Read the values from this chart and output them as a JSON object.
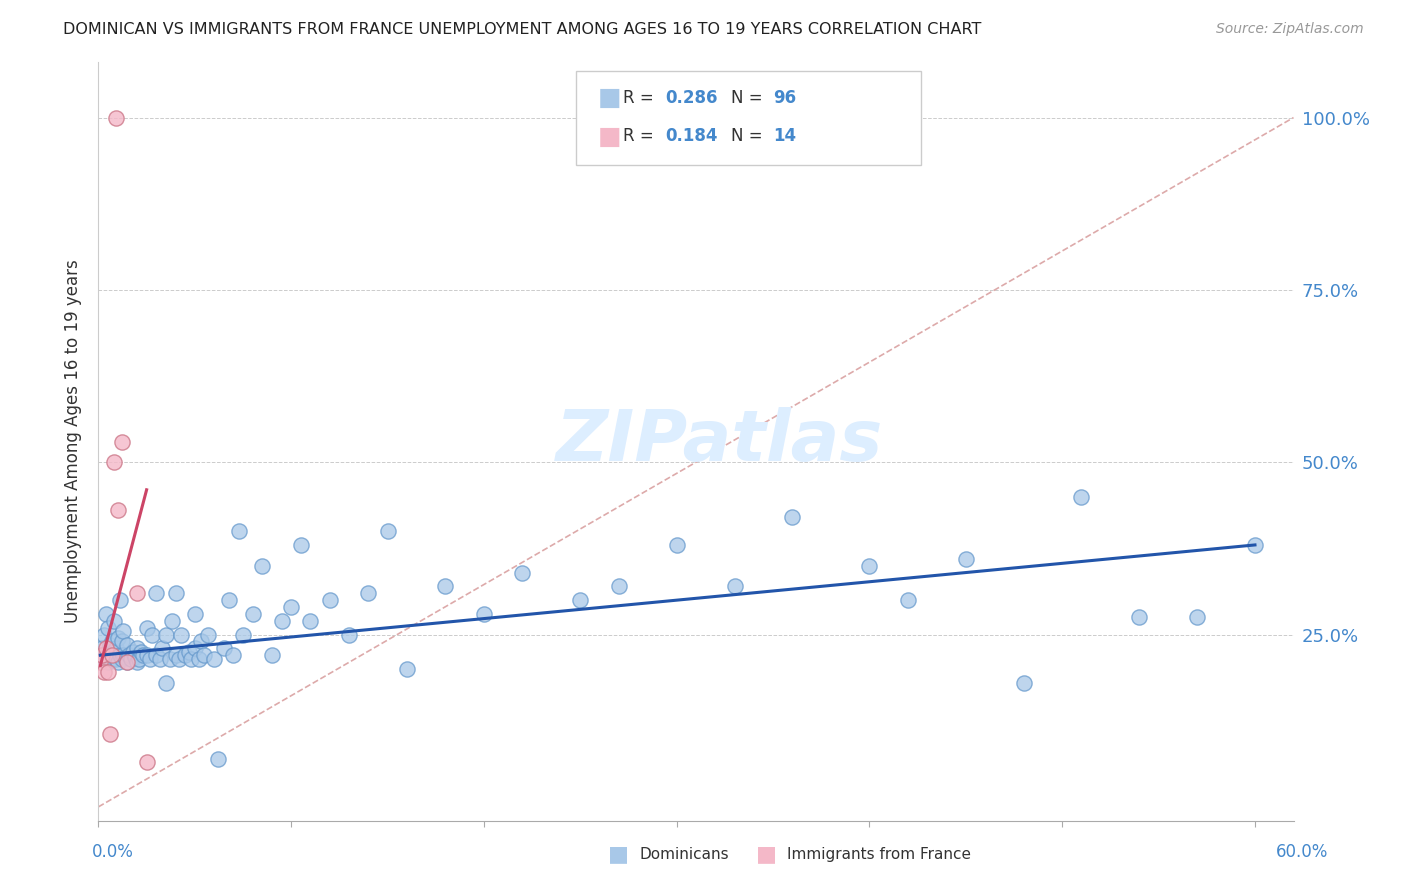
{
  "title": "DOMINICAN VS IMMIGRANTS FROM FRANCE UNEMPLOYMENT AMONG AGES 16 TO 19 YEARS CORRELATION CHART",
  "source": "Source: ZipAtlas.com",
  "ylabel": "Unemployment Among Ages 16 to 19 years",
  "xlim": [
    0.0,
    0.62
  ],
  "ylim": [
    -0.02,
    1.08
  ],
  "blue_scatter_color": "#a8c8e8",
  "blue_scatter_edge": "#6699cc",
  "pink_scatter_color": "#f4b8c8",
  "pink_scatter_edge": "#cc7788",
  "blue_line_color": "#2255aa",
  "pink_line_color": "#cc4466",
  "diag_line_color": "#ddaaaa",
  "right_axis_color": "#4488cc",
  "watermark_color": "#ddeeff",
  "dom_x": [
    0.001,
    0.002,
    0.003,
    0.003,
    0.004,
    0.004,
    0.005,
    0.005,
    0.006,
    0.006,
    0.007,
    0.007,
    0.008,
    0.008,
    0.009,
    0.009,
    0.01,
    0.01,
    0.011,
    0.011,
    0.012,
    0.012,
    0.013,
    0.013,
    0.014,
    0.015,
    0.015,
    0.016,
    0.017,
    0.018,
    0.019,
    0.02,
    0.02,
    0.021,
    0.022,
    0.023,
    0.025,
    0.025,
    0.027,
    0.028,
    0.03,
    0.03,
    0.032,
    0.033,
    0.035,
    0.035,
    0.037,
    0.038,
    0.04,
    0.04,
    0.042,
    0.043,
    0.045,
    0.047,
    0.048,
    0.05,
    0.05,
    0.052,
    0.053,
    0.055,
    0.057,
    0.06,
    0.062,
    0.065,
    0.068,
    0.07,
    0.073,
    0.075,
    0.08,
    0.085,
    0.09,
    0.095,
    0.1,
    0.105,
    0.11,
    0.12,
    0.13,
    0.14,
    0.15,
    0.16,
    0.18,
    0.2,
    0.22,
    0.25,
    0.27,
    0.3,
    0.33,
    0.36,
    0.4,
    0.42,
    0.45,
    0.48,
    0.51,
    0.54,
    0.57,
    0.6
  ],
  "dom_y": [
    0.22,
    0.23,
    0.215,
    0.25,
    0.218,
    0.28,
    0.21,
    0.26,
    0.225,
    0.235,
    0.215,
    0.24,
    0.225,
    0.27,
    0.215,
    0.23,
    0.21,
    0.245,
    0.22,
    0.3,
    0.215,
    0.24,
    0.22,
    0.255,
    0.218,
    0.21,
    0.235,
    0.22,
    0.215,
    0.225,
    0.218,
    0.21,
    0.23,
    0.215,
    0.225,
    0.22,
    0.22,
    0.26,
    0.215,
    0.25,
    0.22,
    0.31,
    0.215,
    0.23,
    0.18,
    0.25,
    0.215,
    0.27,
    0.22,
    0.31,
    0.215,
    0.25,
    0.22,
    0.225,
    0.215,
    0.23,
    0.28,
    0.215,
    0.24,
    0.22,
    0.25,
    0.215,
    0.07,
    0.23,
    0.3,
    0.22,
    0.4,
    0.25,
    0.28,
    0.35,
    0.22,
    0.27,
    0.29,
    0.38,
    0.27,
    0.3,
    0.25,
    0.31,
    0.4,
    0.2,
    0.32,
    0.28,
    0.34,
    0.3,
    0.32,
    0.38,
    0.32,
    0.42,
    0.35,
    0.3,
    0.36,
    0.18,
    0.45,
    0.275,
    0.275,
    0.38
  ],
  "fra_x": [
    0.001,
    0.002,
    0.003,
    0.004,
    0.005,
    0.006,
    0.007,
    0.008,
    0.009,
    0.01,
    0.012,
    0.015,
    0.02,
    0.025
  ],
  "fra_y": [
    0.21,
    0.22,
    0.195,
    0.23,
    0.195,
    0.105,
    0.22,
    0.5,
    1.0,
    0.43,
    0.53,
    0.21,
    0.31,
    0.065
  ],
  "blue_trend_x": [
    0.001,
    0.6
  ],
  "blue_trend_y": [
    0.22,
    0.38
  ],
  "pink_trend_x": [
    0.001,
    0.025
  ],
  "pink_trend_y": [
    0.205,
    0.46
  ]
}
